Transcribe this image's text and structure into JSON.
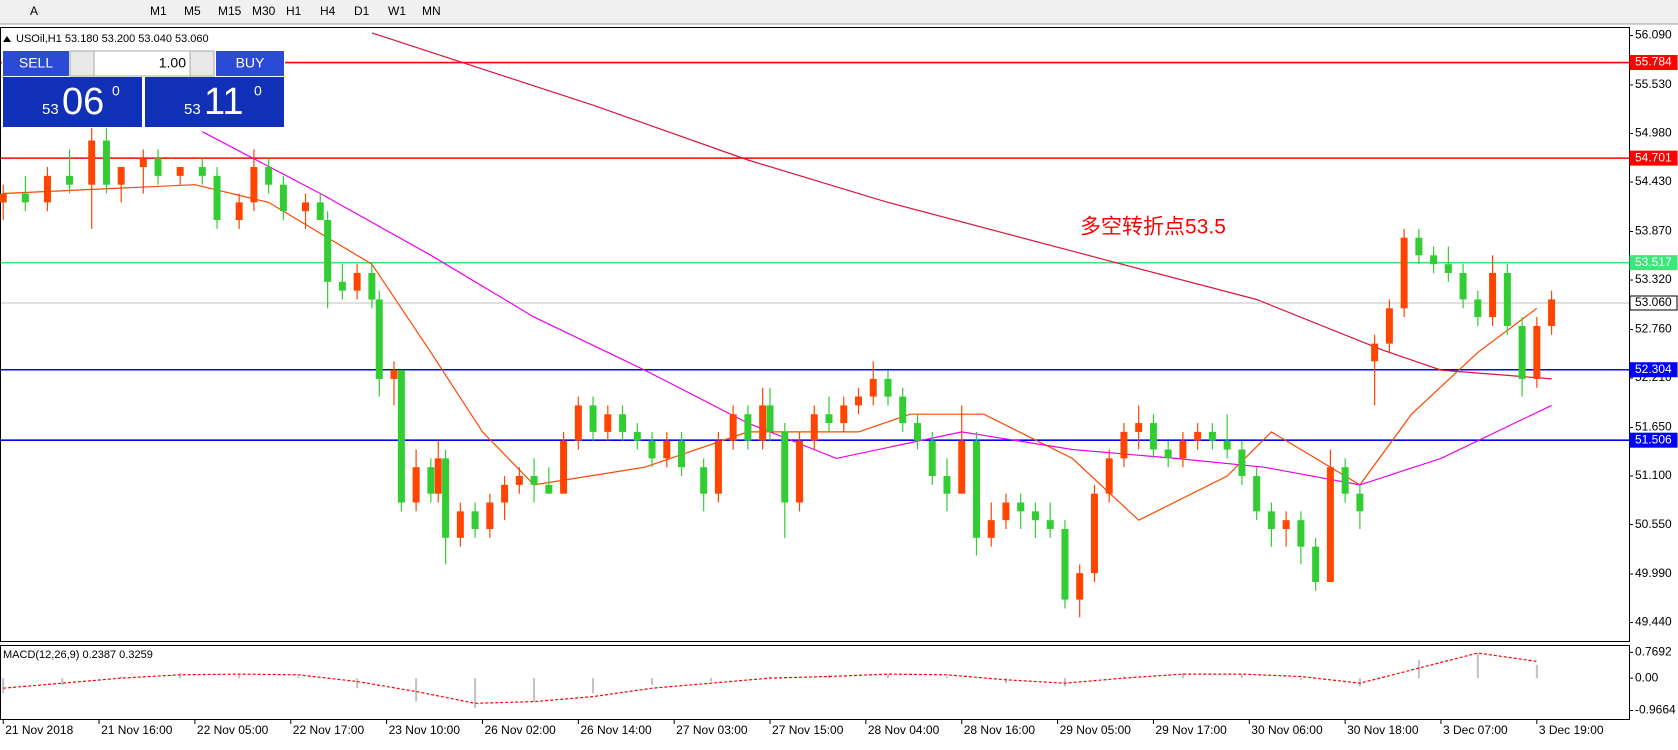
{
  "toolbar": {
    "items": [
      "A",
      "M1",
      "M5",
      "M15",
      "M30",
      "H1",
      "H4",
      "D1",
      "W1",
      "MN"
    ]
  },
  "trade_panel": {
    "sell": "SELL",
    "lots": "1.00",
    "buy": "BUY",
    "sell_big": "53",
    "sell_mid": "06",
    "sell_sup": "0",
    "buy_big": "53",
    "buy_mid": "11",
    "buy_sup": "0"
  },
  "chart_data": {
    "type": "candlestick",
    "title": "USOil,H1  53.180 53.200 53.040 53.060",
    "annotation": "多空转折点53.5",
    "up_color": "#ff4500",
    "down_color": "#32cd32",
    "xlim": [
      -0.3,
      220.5
    ],
    "ylim": [
      49.22,
      56.175
    ],
    "yticks": [
      {
        "value": 56.09,
        "label": "56.090"
      },
      {
        "value": 55.53,
        "label": "55.530"
      },
      {
        "value": 54.98,
        "label": "54.980"
      },
      {
        "value": 54.43,
        "label": "54.430"
      },
      {
        "value": 53.87,
        "label": "53.870"
      },
      {
        "value": 53.32,
        "label": "53.320"
      },
      {
        "value": 52.76,
        "label": "52.760"
      },
      {
        "value": 52.21,
        "label": "52.210"
      },
      {
        "value": 51.65,
        "label": "51.650"
      },
      {
        "value": 51.1,
        "label": "51.100"
      },
      {
        "value": 50.55,
        "label": "50.550"
      },
      {
        "value": 49.99,
        "label": "49.990"
      },
      {
        "value": 49.44,
        "label": "49.440"
      }
    ],
    "xticks": [
      {
        "value": 0,
        "label": "21 Nov 2018"
      },
      {
        "value": 13,
        "label": "21 Nov 16:00"
      },
      {
        "value": 26,
        "label": "22 Nov 05:00"
      },
      {
        "value": 39,
        "label": "22 Nov 17:00"
      },
      {
        "value": 52,
        "label": "23 Nov 10:00"
      },
      {
        "value": 65,
        "label": "26 Nov 02:00"
      },
      {
        "value": 78,
        "label": "26 Nov 14:00"
      },
      {
        "value": 91,
        "label": "27 Nov 03:00"
      },
      {
        "value": 104,
        "label": "27 Nov 15:00"
      },
      {
        "value": 117,
        "label": "28 Nov 04:00"
      },
      {
        "value": 130,
        "label": "28 Nov 16:00"
      },
      {
        "value": 143,
        "label": "29 Nov 05:00"
      },
      {
        "value": 156,
        "label": "29 Nov 17:00"
      },
      {
        "value": 169,
        "label": "30 Nov 06:00"
      },
      {
        "value": 182,
        "label": "30 Nov 18:00"
      },
      {
        "value": 195,
        "label": "3 Dec 07:00"
      },
      {
        "value": 208,
        "label": "3 Dec 19:00"
      }
    ],
    "levels": [
      {
        "value": 55.784,
        "label": "55.784",
        "color": "#ff0000"
      },
      {
        "value": 54.701,
        "label": "54.701",
        "color": "#ff0000"
      },
      {
        "value": 53.517,
        "label": "53.517",
        "color": "#3ce678"
      },
      {
        "value": 53.06,
        "label": "53.060",
        "color": "#c0c0c0"
      },
      {
        "value": 52.304,
        "label": "52.304",
        "color": "#0000ff"
      },
      {
        "value": 51.506,
        "label": "51.506",
        "color": "#0000ff"
      }
    ],
    "candles": [
      {
        "x": 0,
        "o": 54.2,
        "h": 54.4,
        "l": 54.0,
        "c": 54.3
      },
      {
        "x": 3,
        "o": 54.3,
        "h": 54.5,
        "l": 54.1,
        "c": 54.2
      },
      {
        "x": 6,
        "o": 54.2,
        "h": 54.6,
        "l": 54.1,
        "c": 54.5
      },
      {
        "x": 9,
        "o": 54.5,
        "h": 54.8,
        "l": 54.3,
        "c": 54.4
      },
      {
        "x": 12,
        "o": 54.4,
        "h": 55.1,
        "l": 53.9,
        "c": 54.9
      },
      {
        "x": 14,
        "o": 54.9,
        "h": 55.1,
        "l": 54.3,
        "c": 54.4
      },
      {
        "x": 16,
        "o": 54.4,
        "h": 54.6,
        "l": 54.2,
        "c": 54.6
      },
      {
        "x": 19,
        "o": 54.6,
        "h": 54.8,
        "l": 54.3,
        "c": 54.7
      },
      {
        "x": 21,
        "o": 54.7,
        "h": 54.8,
        "l": 54.4,
        "c": 54.5
      },
      {
        "x": 24,
        "o": 54.5,
        "h": 54.6,
        "l": 54.4,
        "c": 54.6
      },
      {
        "x": 27,
        "o": 54.6,
        "h": 54.7,
        "l": 54.4,
        "c": 54.5
      },
      {
        "x": 29,
        "o": 54.5,
        "h": 54.6,
        "l": 53.9,
        "c": 54.0
      },
      {
        "x": 32,
        "o": 54.0,
        "h": 54.3,
        "l": 53.9,
        "c": 54.2
      },
      {
        "x": 34,
        "o": 54.2,
        "h": 54.8,
        "l": 54.1,
        "c": 54.6
      },
      {
        "x": 36,
        "o": 54.6,
        "h": 54.7,
        "l": 54.3,
        "c": 54.4
      },
      {
        "x": 38,
        "o": 54.4,
        "h": 54.5,
        "l": 54.0,
        "c": 54.1
      },
      {
        "x": 41,
        "o": 54.1,
        "h": 54.3,
        "l": 53.9,
        "c": 54.2
      },
      {
        "x": 43,
        "o": 54.2,
        "h": 54.3,
        "l": 54.0,
        "c": 54.0
      },
      {
        "x": 44,
        "o": 54.0,
        "h": 54.1,
        "l": 53.0,
        "c": 53.3
      },
      {
        "x": 46,
        "o": 53.3,
        "h": 53.5,
        "l": 53.1,
        "c": 53.2
      },
      {
        "x": 48,
        "o": 53.2,
        "h": 53.5,
        "l": 53.1,
        "c": 53.4
      },
      {
        "x": 50,
        "o": 53.4,
        "h": 53.5,
        "l": 53.0,
        "c": 53.1
      },
      {
        "x": 51,
        "o": 53.1,
        "h": 53.2,
        "l": 52.0,
        "c": 52.2
      },
      {
        "x": 53,
        "o": 52.2,
        "h": 52.4,
        "l": 51.9,
        "c": 52.3
      },
      {
        "x": 54,
        "o": 52.3,
        "h": 52.3,
        "l": 50.7,
        "c": 50.8
      },
      {
        "x": 56,
        "o": 50.8,
        "h": 51.4,
        "l": 50.7,
        "c": 51.2
      },
      {
        "x": 58,
        "o": 51.2,
        "h": 51.3,
        "l": 50.8,
        "c": 50.9
      },
      {
        "x": 59,
        "o": 50.9,
        "h": 51.5,
        "l": 50.8,
        "c": 51.3
      },
      {
        "x": 60,
        "o": 51.3,
        "h": 51.4,
        "l": 50.1,
        "c": 50.4
      },
      {
        "x": 62,
        "o": 50.4,
        "h": 50.8,
        "l": 50.3,
        "c": 50.7
      },
      {
        "x": 64,
        "o": 50.7,
        "h": 50.8,
        "l": 50.4,
        "c": 50.5
      },
      {
        "x": 66,
        "o": 50.5,
        "h": 50.9,
        "l": 50.4,
        "c": 50.8
      },
      {
        "x": 68,
        "o": 50.8,
        "h": 51.1,
        "l": 50.6,
        "c": 51.0
      },
      {
        "x": 70,
        "o": 51.0,
        "h": 51.2,
        "l": 50.9,
        "c": 51.1
      },
      {
        "x": 72,
        "o": 51.1,
        "h": 51.3,
        "l": 50.8,
        "c": 51.0
      },
      {
        "x": 74,
        "o": 51.0,
        "h": 51.2,
        "l": 50.9,
        "c": 50.9
      },
      {
        "x": 76,
        "o": 50.9,
        "h": 51.6,
        "l": 50.9,
        "c": 51.5
      },
      {
        "x": 78,
        "o": 51.5,
        "h": 52.0,
        "l": 51.4,
        "c": 51.9
      },
      {
        "x": 80,
        "o": 51.9,
        "h": 52.0,
        "l": 51.5,
        "c": 51.6
      },
      {
        "x": 82,
        "o": 51.6,
        "h": 51.9,
        "l": 51.5,
        "c": 51.8
      },
      {
        "x": 84,
        "o": 51.8,
        "h": 51.9,
        "l": 51.5,
        "c": 51.6
      },
      {
        "x": 86,
        "o": 51.6,
        "h": 51.7,
        "l": 51.4,
        "c": 51.5
      },
      {
        "x": 88,
        "o": 51.5,
        "h": 51.6,
        "l": 51.2,
        "c": 51.3
      },
      {
        "x": 90,
        "o": 51.3,
        "h": 51.6,
        "l": 51.2,
        "c": 51.5
      },
      {
        "x": 92,
        "o": 51.5,
        "h": 51.6,
        "l": 51.1,
        "c": 51.2
      },
      {
        "x": 95,
        "o": 51.2,
        "h": 51.3,
        "l": 50.7,
        "c": 50.9
      },
      {
        "x": 97,
        "o": 50.9,
        "h": 51.6,
        "l": 50.8,
        "c": 51.5
      },
      {
        "x": 99,
        "o": 51.5,
        "h": 51.9,
        "l": 51.4,
        "c": 51.8
      },
      {
        "x": 101,
        "o": 51.8,
        "h": 51.9,
        "l": 51.4,
        "c": 51.5
      },
      {
        "x": 103,
        "o": 51.5,
        "h": 52.1,
        "l": 51.4,
        "c": 51.9
      },
      {
        "x": 104,
        "o": 51.9,
        "h": 52.1,
        "l": 51.5,
        "c": 51.6
      },
      {
        "x": 106,
        "o": 51.6,
        "h": 51.7,
        "l": 50.4,
        "c": 50.8
      },
      {
        "x": 108,
        "o": 50.8,
        "h": 51.6,
        "l": 50.7,
        "c": 51.5
      },
      {
        "x": 110,
        "o": 51.5,
        "h": 51.9,
        "l": 51.4,
        "c": 51.8
      },
      {
        "x": 112,
        "o": 51.8,
        "h": 52.0,
        "l": 51.6,
        "c": 51.7
      },
      {
        "x": 114,
        "o": 51.7,
        "h": 52.0,
        "l": 51.6,
        "c": 51.9
      },
      {
        "x": 116,
        "o": 51.9,
        "h": 52.1,
        "l": 51.8,
        "c": 52.0
      },
      {
        "x": 118,
        "o": 52.0,
        "h": 52.4,
        "l": 51.9,
        "c": 52.2
      },
      {
        "x": 120,
        "o": 52.2,
        "h": 52.3,
        "l": 51.9,
        "c": 52.0
      },
      {
        "x": 122,
        "o": 52.0,
        "h": 52.1,
        "l": 51.6,
        "c": 51.7
      },
      {
        "x": 124,
        "o": 51.7,
        "h": 51.8,
        "l": 51.4,
        "c": 51.5
      },
      {
        "x": 126,
        "o": 51.5,
        "h": 51.6,
        "l": 51.0,
        "c": 51.1
      },
      {
        "x": 128,
        "o": 51.1,
        "h": 51.3,
        "l": 50.7,
        "c": 50.9
      },
      {
        "x": 130,
        "o": 50.9,
        "h": 51.9,
        "l": 50.9,
        "c": 51.5
      },
      {
        "x": 132,
        "o": 51.5,
        "h": 51.6,
        "l": 50.2,
        "c": 50.4
      },
      {
        "x": 134,
        "o": 50.4,
        "h": 50.8,
        "l": 50.3,
        "c": 50.6
      },
      {
        "x": 136,
        "o": 50.6,
        "h": 50.9,
        "l": 50.5,
        "c": 50.8
      },
      {
        "x": 138,
        "o": 50.8,
        "h": 50.9,
        "l": 50.5,
        "c": 50.7
      },
      {
        "x": 140,
        "o": 50.7,
        "h": 50.8,
        "l": 50.4,
        "c": 50.6
      },
      {
        "x": 142,
        "o": 50.6,
        "h": 50.8,
        "l": 50.4,
        "c": 50.5
      },
      {
        "x": 144,
        "o": 50.5,
        "h": 50.6,
        "l": 49.6,
        "c": 49.7
      },
      {
        "x": 146,
        "o": 49.7,
        "h": 50.1,
        "l": 49.5,
        "c": 50.0
      },
      {
        "x": 148,
        "o": 50.0,
        "h": 51.0,
        "l": 49.9,
        "c": 50.9
      },
      {
        "x": 150,
        "o": 50.9,
        "h": 51.4,
        "l": 50.8,
        "c": 51.3
      },
      {
        "x": 152,
        "o": 51.3,
        "h": 51.7,
        "l": 51.2,
        "c": 51.6
      },
      {
        "x": 154,
        "o": 51.6,
        "h": 51.9,
        "l": 51.4,
        "c": 51.7
      },
      {
        "x": 156,
        "o": 51.7,
        "h": 51.8,
        "l": 51.3,
        "c": 51.4
      },
      {
        "x": 158,
        "o": 51.4,
        "h": 51.5,
        "l": 51.2,
        "c": 51.3
      },
      {
        "x": 160,
        "o": 51.3,
        "h": 51.6,
        "l": 51.2,
        "c": 51.5
      },
      {
        "x": 162,
        "o": 51.5,
        "h": 51.7,
        "l": 51.4,
        "c": 51.6
      },
      {
        "x": 164,
        "o": 51.6,
        "h": 51.7,
        "l": 51.4,
        "c": 51.5
      },
      {
        "x": 166,
        "o": 51.5,
        "h": 51.8,
        "l": 51.3,
        "c": 51.4
      },
      {
        "x": 168,
        "o": 51.4,
        "h": 51.5,
        "l": 51.0,
        "c": 51.1
      },
      {
        "x": 170,
        "o": 51.1,
        "h": 51.2,
        "l": 50.6,
        "c": 50.7
      },
      {
        "x": 172,
        "o": 50.7,
        "h": 50.8,
        "l": 50.3,
        "c": 50.5
      },
      {
        "x": 174,
        "o": 50.5,
        "h": 50.7,
        "l": 50.3,
        "c": 50.6
      },
      {
        "x": 176,
        "o": 50.6,
        "h": 50.7,
        "l": 50.1,
        "c": 50.3
      },
      {
        "x": 178,
        "o": 50.3,
        "h": 50.4,
        "l": 49.8,
        "c": 49.9
      },
      {
        "x": 180,
        "o": 49.9,
        "h": 51.4,
        "l": 49.9,
        "c": 51.2
      },
      {
        "x": 182,
        "o": 51.2,
        "h": 51.3,
        "l": 50.8,
        "c": 50.9
      },
      {
        "x": 184,
        "o": 50.9,
        "h": 51.0,
        "l": 50.5,
        "c": 50.7
      },
      {
        "x": 186,
        "o": 52.4,
        "h": 52.7,
        "l": 51.9,
        "c": 52.6
      },
      {
        "x": 188,
        "o": 52.6,
        "h": 53.1,
        "l": 52.5,
        "c": 53.0
      },
      {
        "x": 190,
        "o": 53.0,
        "h": 53.9,
        "l": 52.9,
        "c": 53.8
      },
      {
        "x": 192,
        "o": 53.8,
        "h": 53.9,
        "l": 53.5,
        "c": 53.6
      },
      {
        "x": 194,
        "o": 53.6,
        "h": 53.7,
        "l": 53.4,
        "c": 53.5
      },
      {
        "x": 196,
        "o": 53.5,
        "h": 53.7,
        "l": 53.3,
        "c": 53.4
      },
      {
        "x": 198,
        "o": 53.4,
        "h": 53.5,
        "l": 53.0,
        "c": 53.1
      },
      {
        "x": 200,
        "o": 53.1,
        "h": 53.2,
        "l": 52.8,
        "c": 52.9
      },
      {
        "x": 202,
        "o": 52.9,
        "h": 53.6,
        "l": 52.8,
        "c": 53.4
      },
      {
        "x": 204,
        "o": 53.4,
        "h": 53.5,
        "l": 52.7,
        "c": 52.8
      },
      {
        "x": 206,
        "o": 52.8,
        "h": 52.9,
        "l": 52.0,
        "c": 52.2
      },
      {
        "x": 208,
        "o": 52.2,
        "h": 52.9,
        "l": 52.1,
        "c": 52.8
      },
      {
        "x": 210,
        "o": 52.8,
        "h": 53.2,
        "l": 52.7,
        "c": 53.1
      }
    ],
    "series": [
      {
        "color": "#dc143c",
        "x": [
          50,
          80,
          101,
          120,
          149,
          170,
          187,
          195,
          210
        ],
        "values": [
          56.12,
          55.3,
          54.68,
          54.2,
          53.56,
          53.1,
          52.53,
          52.3,
          52.2
        ]
      },
      {
        "color": "#ff4500",
        "x": [
          0,
          26,
          36,
          50,
          58,
          65,
          72,
          87,
          101,
          116,
          123,
          133,
          145,
          154,
          166,
          172,
          182,
          184,
          191,
          200,
          208
        ],
        "values": [
          54.3,
          54.4,
          54.2,
          53.5,
          52.5,
          51.6,
          51.0,
          51.2,
          51.6,
          51.6,
          51.8,
          51.8,
          51.3,
          50.6,
          51.1,
          51.6,
          51.1,
          51.0,
          51.8,
          52.5,
          53.0
        ]
      },
      {
        "color": "#ee00ee",
        "x": [
          27,
          43,
          58,
          72,
          87,
          101,
          113,
          130,
          145,
          159,
          171,
          184,
          195,
          210
        ],
        "values": [
          55.0,
          54.3,
          53.6,
          52.9,
          52.3,
          51.7,
          51.3,
          51.6,
          51.4,
          51.3,
          51.2,
          51.0,
          51.3,
          51.9
        ]
      }
    ],
    "macd": {
      "label": "MACD(12,26,9) 0.2387 0.3259",
      "ylim": [
        -1.22,
        0.96
      ],
      "yticks": [
        {
          "value": 0.7692,
          "label": "0.7692"
        },
        {
          "value": 0,
          "label": "0.00"
        },
        {
          "value": -0.9664,
          "label": "-0.9664"
        }
      ],
      "x": [
        0,
        8,
        16,
        24,
        32,
        40,
        48,
        56,
        64,
        72,
        80,
        88,
        96,
        104,
        112,
        120,
        128,
        136,
        144,
        152,
        160,
        168,
        176,
        184,
        192,
        200,
        208
      ],
      "histogram": [
        -0.45,
        -0.2,
        0.05,
        0.15,
        0.1,
        0.05,
        -0.3,
        -0.7,
        -0.9,
        -0.7,
        -0.45,
        -0.2,
        -0.1,
        0.05,
        0.1,
        0.12,
        0.05,
        -0.15,
        -0.25,
        0.05,
        0.15,
        0.12,
        -0.05,
        -0.25,
        0.55,
        0.75,
        0.4
      ],
      "signal": [
        -0.3,
        -0.15,
        0.0,
        0.1,
        0.12,
        0.1,
        -0.1,
        -0.4,
        -0.75,
        -0.7,
        -0.55,
        -0.3,
        -0.15,
        0.0,
        0.05,
        0.12,
        0.1,
        -0.05,
        -0.15,
        0.0,
        0.12,
        0.12,
        0.05,
        -0.15,
        0.3,
        0.75,
        0.5
      ]
    }
  }
}
